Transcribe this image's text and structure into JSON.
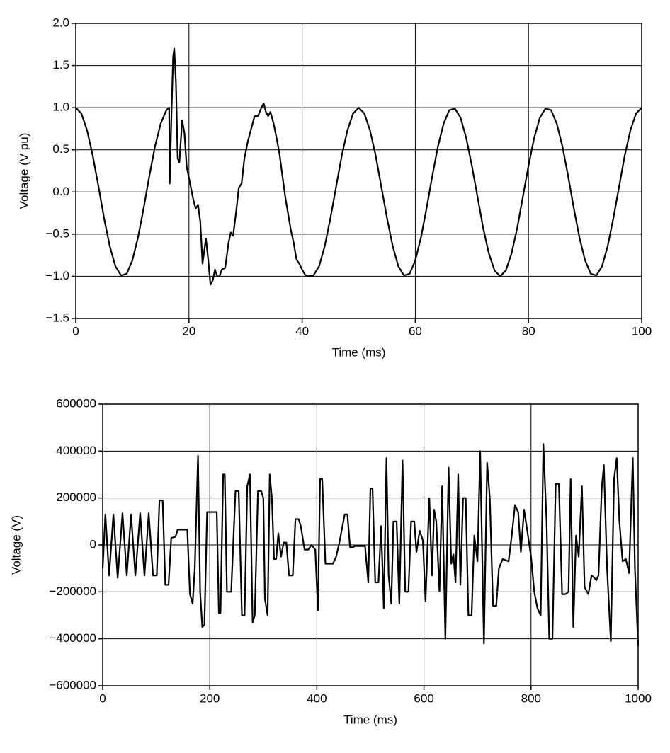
{
  "chart_data": [
    {
      "type": "line",
      "xlabel": "Time (ms)",
      "ylabel": "Voltage (V pu)",
      "x": [
        0,
        1,
        2,
        3,
        4,
        5,
        6,
        7,
        8,
        9,
        10,
        11,
        12,
        13,
        14,
        15,
        16,
        16.5,
        16.6,
        16.9,
        17.2,
        17.4,
        17.7,
        18.0,
        18.3,
        18.8,
        19.2,
        19.6,
        20.2,
        20.8,
        21.2,
        21.6,
        22.0,
        22.4,
        22.7,
        23.0,
        23.4,
        23.8,
        24.2,
        24.6,
        25.0,
        25.4,
        25.8,
        26.4,
        27.0,
        27.4,
        27.8,
        28.4,
        28.8,
        29.3,
        29.8,
        30.4,
        31.0,
        31.6,
        32.2,
        32.8,
        33.2,
        33.6,
        34.0,
        34.4,
        35.0,
        35.6,
        36.0,
        36.5,
        37.0,
        37.5,
        38.0,
        38.5,
        39.0,
        39.5,
        40.0,
        40.5,
        41,
        42,
        43,
        44,
        45,
        46,
        47,
        48,
        49,
        50,
        51,
        52,
        53,
        54,
        55,
        56,
        57,
        58,
        59,
        60,
        61,
        62,
        63,
        64,
        65,
        66,
        67,
        68,
        69,
        70,
        71,
        72,
        73,
        74,
        75,
        76,
        77,
        78,
        79,
        80,
        81,
        82,
        83,
        84,
        85,
        86,
        87,
        88,
        89,
        90,
        91,
        92,
        93,
        94,
        95,
        96,
        97,
        98,
        99,
        100
      ],
      "series": [
        {
          "color": "#000000",
          "values": [
            1.0,
            0.93,
            0.73,
            0.43,
            0.07,
            -0.31,
            -0.64,
            -0.88,
            -0.99,
            -0.97,
            -0.81,
            -0.54,
            -0.19,
            0.19,
            0.54,
            0.81,
            0.97,
            1.0,
            0.1,
            0.9,
            1.6,
            1.7,
            1.3,
            0.4,
            0.35,
            0.85,
            0.7,
            0.3,
            0.1,
            -0.1,
            -0.2,
            -0.15,
            -0.35,
            -0.85,
            -0.7,
            -0.55,
            -0.8,
            -1.1,
            -1.05,
            -0.92,
            -1.0,
            -1.0,
            -0.92,
            -0.9,
            -0.6,
            -0.48,
            -0.52,
            -0.2,
            0.05,
            0.1,
            0.4,
            0.6,
            0.75,
            0.9,
            0.9,
            1.0,
            1.05,
            0.95,
            0.9,
            0.95,
            0.8,
            0.6,
            0.45,
            0.2,
            -0.05,
            -0.25,
            -0.45,
            -0.6,
            -0.8,
            -0.85,
            -0.92,
            -0.98,
            -1.0,
            -0.99,
            -0.88,
            -0.64,
            -0.31,
            0.06,
            0.43,
            0.73,
            0.93,
            1.0,
            0.93,
            0.73,
            0.43,
            0.06,
            -0.31,
            -0.64,
            -0.88,
            -0.99,
            -0.97,
            -0.81,
            -0.54,
            -0.19,
            0.19,
            0.54,
            0.81,
            0.97,
            0.99,
            0.88,
            0.64,
            0.31,
            -0.06,
            -0.43,
            -0.73,
            -0.93,
            -1.0,
            -0.93,
            -0.73,
            -0.43,
            -0.06,
            0.31,
            0.64,
            0.88,
            0.99,
            0.97,
            0.81,
            0.54,
            0.19,
            -0.19,
            -0.54,
            -0.81,
            -0.97,
            -0.99,
            -0.88,
            -0.64,
            -0.31,
            0.06,
            0.43,
            0.73,
            0.93,
            1.0
          ]
        }
      ],
      "xlim": [
        0,
        100
      ],
      "xticks": [
        0,
        20,
        40,
        60,
        80,
        100
      ],
      "ylim": [
        -1.5,
        2.0
      ],
      "yticks": [
        {
          "value": -1.5,
          "label": "−1.5"
        },
        {
          "value": -1,
          "label": "−1.0"
        },
        {
          "value": -0.5,
          "label": "−0.5"
        },
        {
          "value": 0,
          "label": "0.0"
        },
        0.5,
        {
          "value": 1,
          "label": "1.0"
        },
        1.5,
        {
          "value": 2,
          "label": "2.0"
        }
      ],
      "grid": true
    },
    {
      "type": "line",
      "xlabel": "Time (ms)",
      "ylabel": "Voltage (V)",
      "x": [
        0,
        5,
        12,
        20,
        28,
        37,
        45,
        53,
        61,
        70,
        78,
        86,
        94,
        101,
        106,
        112,
        117,
        123,
        128,
        136,
        140,
        158,
        163,
        168,
        172,
        178,
        182,
        186,
        190,
        195,
        213,
        217,
        220,
        225,
        228,
        232,
        240,
        248,
        254,
        260,
        265,
        270,
        275,
        280,
        284,
        290,
        296,
        300,
        303,
        308,
        312,
        316,
        320,
        324,
        328,
        333,
        338,
        343,
        348,
        355,
        360,
        366,
        370,
        377,
        384,
        390,
        397,
        402,
        406,
        410,
        416,
        430,
        436,
        442,
        452,
        457,
        462,
        468,
        470,
        490,
        496,
        500,
        504,
        509,
        515,
        520,
        525,
        530,
        534,
        539,
        543,
        549,
        554,
        560,
        565,
        571,
        576,
        582,
        586,
        592,
        598,
        603,
        610,
        615,
        619,
        623,
        629,
        634,
        640,
        646,
        651,
        655,
        659,
        664,
        668,
        673,
        678,
        683,
        689,
        694,
        700,
        705,
        712,
        718,
        723,
        729,
        735,
        740,
        747,
        758,
        764,
        770,
        776,
        781,
        787,
        793,
        800,
        806,
        812,
        818,
        823,
        829,
        834,
        840,
        846,
        852,
        858,
        864,
        870,
        874,
        879,
        884,
        889,
        895,
        900,
        907,
        913,
        918,
        922,
        926,
        932,
        936,
        942,
        949,
        955,
        960,
        965,
        971,
        977,
        983,
        990,
        994,
        1000
      ],
      "series": [
        {
          "color": "#000000",
          "values": [
            -100000,
            130000,
            -130000,
            130000,
            -140000,
            135000,
            -130000,
            130000,
            -130000,
            135000,
            -130000,
            135000,
            -130000,
            -130000,
            190000,
            190000,
            -170000,
            -170000,
            30000,
            35000,
            65000,
            65000,
            -210000,
            -250000,
            -100000,
            380000,
            -200000,
            -350000,
            -340000,
            140000,
            140000,
            -290000,
            -290000,
            300000,
            300000,
            -200000,
            -200000,
            230000,
            230000,
            -300000,
            -300000,
            250000,
            300000,
            -330000,
            -300000,
            230000,
            230000,
            200000,
            -230000,
            -300000,
            300000,
            200000,
            -60000,
            -60000,
            50000,
            -50000,
            10000,
            10000,
            -130000,
            -130000,
            110000,
            110000,
            80000,
            -20000,
            -20000,
            0,
            -20000,
            -280000,
            280000,
            280000,
            -80000,
            -80000,
            -50000,
            10000,
            130000,
            130000,
            -10000,
            -10000,
            -5000,
            -5000,
            -160000,
            240000,
            240000,
            -160000,
            -160000,
            80000,
            -270000,
            370000,
            -130000,
            -250000,
            100000,
            100000,
            -250000,
            360000,
            -200000,
            -200000,
            100000,
            100000,
            -30000,
            60000,
            20000,
            -240000,
            200000,
            -130000,
            150000,
            100000,
            -200000,
            250000,
            -400000,
            330000,
            -80000,
            -40000,
            -160000,
            300000,
            -170000,
            200000,
            200000,
            -300000,
            -300000,
            40000,
            -70000,
            400000,
            -420000,
            350000,
            200000,
            -260000,
            -260000,
            -100000,
            -60000,
            -70000,
            40000,
            170000,
            140000,
            -30000,
            150000,
            60000,
            -50000,
            -200000,
            -270000,
            -300000,
            430000,
            100000,
            -400000,
            -400000,
            260000,
            260000,
            -210000,
            -210000,
            -200000,
            280000,
            -350000,
            40000,
            -50000,
            250000,
            -180000,
            -210000,
            -130000,
            -140000,
            -150000,
            -130000,
            240000,
            340000,
            -100000,
            -410000,
            280000,
            370000,
            100000,
            -70000,
            -60000,
            -120000,
            370000,
            -100000,
            -430000
          ]
        }
      ],
      "xlim": [
        0,
        1000
      ],
      "xticks": [
        0,
        200,
        400,
        600,
        800,
        1000
      ],
      "ylim": [
        -600000,
        600000
      ],
      "yticks": [
        {
          "value": -600000,
          "label": "−600000"
        },
        {
          "value": -400000,
          "label": "−400000"
        },
        {
          "value": -200000,
          "label": "−200000"
        },
        0,
        200000,
        400000,
        600000
      ],
      "grid": true
    }
  ]
}
